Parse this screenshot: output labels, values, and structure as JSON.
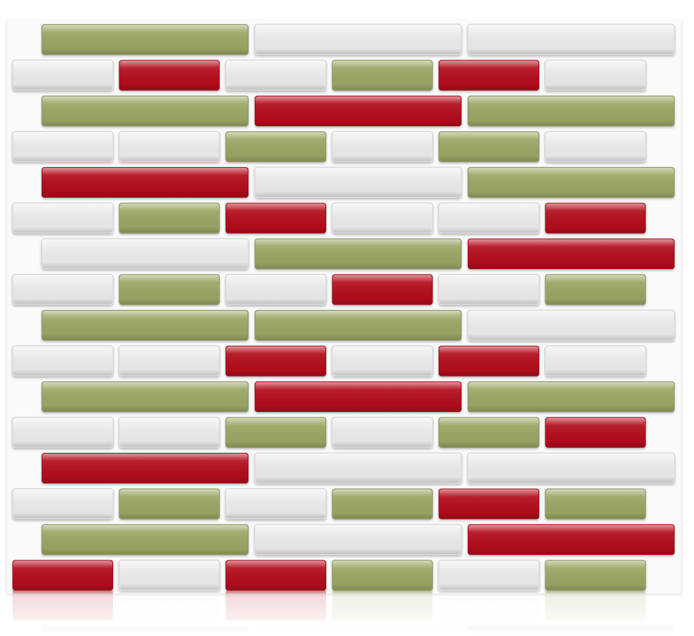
{
  "tiles": {
    "palette": {
      "g": "#9aa765",
      "w": "#ececec",
      "r": "#b3111c"
    },
    "rows": [
      [
        "g",
        "w",
        "w"
      ],
      [
        "w",
        "r",
        "w",
        "g",
        "r",
        "w"
      ],
      [
        "g",
        "r",
        "g"
      ],
      [
        "w",
        "w",
        "g",
        "w",
        "g",
        "w"
      ],
      [
        "r",
        "w",
        "g"
      ],
      [
        "w",
        "g",
        "r",
        "w",
        "w",
        "r"
      ],
      [
        "w",
        "g",
        "r"
      ],
      [
        "w",
        "g",
        "w",
        "r",
        "w",
        "g"
      ],
      [
        "g",
        "g",
        "w"
      ],
      [
        "w",
        "w",
        "r",
        "w",
        "r",
        "w"
      ],
      [
        "g",
        "r",
        "g"
      ],
      [
        "w",
        "w",
        "g",
        "w",
        "g",
        "r"
      ],
      [
        "r",
        "w",
        "w"
      ],
      [
        "w",
        "g",
        "w",
        "g",
        "r",
        "g"
      ],
      [
        "g",
        "w",
        "r"
      ],
      [
        "r",
        "w",
        "r",
        "g",
        "w",
        "g"
      ]
    ]
  }
}
